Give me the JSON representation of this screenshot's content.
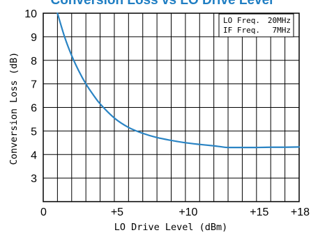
{
  "chart_data": {
    "type": "line",
    "title": "Conversion Loss vs LO Drive Level",
    "xlabel": "LO Drive Level (dBm)",
    "ylabel": "Conversion Loss (dB)",
    "xlim": [
      0,
      18
    ],
    "ylim": [
      2,
      10
    ],
    "x_ticks": [
      0,
      1,
      2,
      3,
      4,
      5,
      6,
      7,
      8,
      9,
      10,
      11,
      12,
      13,
      14,
      15,
      16,
      17,
      18
    ],
    "x_tick_labels": [
      "0",
      "+5",
      "+10",
      "+15",
      "+18"
    ],
    "x_tick_label_values": [
      0,
      5,
      10,
      15,
      18
    ],
    "y_ticks": [
      3,
      4,
      5,
      6,
      7,
      8,
      9,
      10
    ],
    "y_tick_labels": [
      "3",
      "4",
      "5",
      "6",
      "7",
      "8",
      "9",
      "10"
    ],
    "grid": true,
    "legend_position": "top-right",
    "legend_lines": [
      {
        "label": "LO Freq.",
        "value": "20MHz"
      },
      {
        "label": "IF Freq.",
        "value": "7MHz"
      }
    ],
    "series": [
      {
        "color": "#2a84c4",
        "x": [
          1,
          1.5,
          2,
          2.5,
          3,
          3.5,
          4,
          5,
          6,
          7,
          8,
          9,
          10,
          11,
          12,
          12.5,
          13,
          14,
          15,
          16,
          17,
          18
        ],
        "y": [
          10.0,
          9.0,
          8.2,
          7.55,
          7.0,
          6.55,
          6.15,
          5.55,
          5.15,
          4.9,
          4.72,
          4.6,
          4.5,
          4.43,
          4.37,
          4.33,
          4.3,
          4.3,
          4.3,
          4.31,
          4.31,
          4.32
        ]
      }
    ],
    "colors": {
      "title": "#1f7ec3",
      "curve": "#2a84c4",
      "grid": "#000000"
    }
  }
}
